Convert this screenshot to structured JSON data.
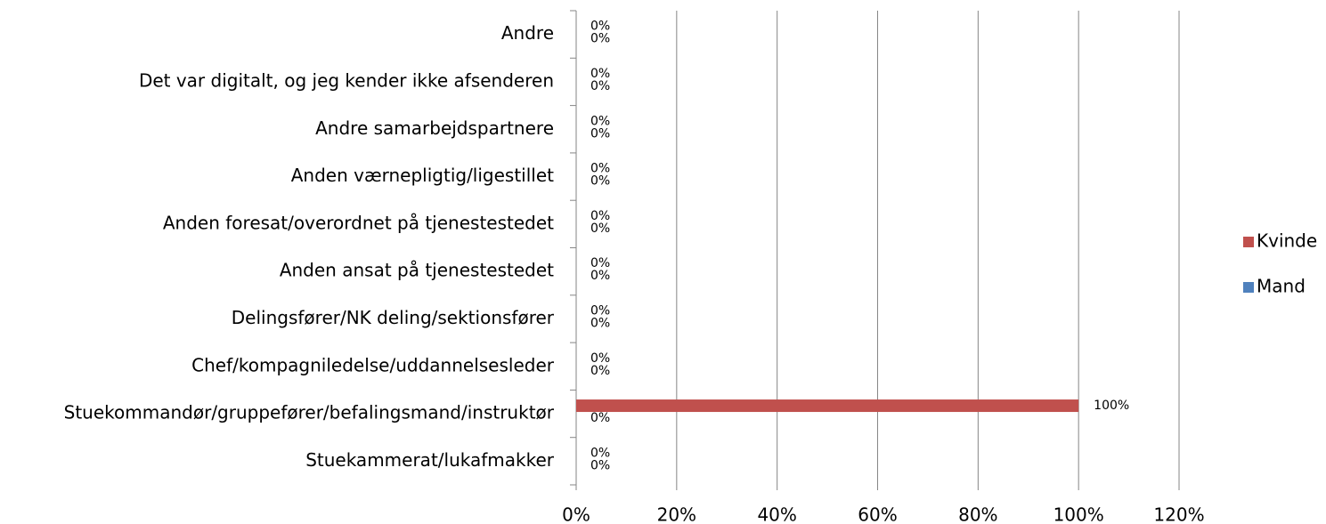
{
  "chart_data": {
    "type": "hbar",
    "categories": [
      "Andre",
      "Det var digitalt, og jeg kender ikke afsenderen",
      "Andre samarbejdspartnere",
      "Anden værnepligtig/ligestillet",
      "Anden foresat/overordnet på tjenestestedet",
      "Anden ansat på tjenestestedet",
      "Delingsfører/NK deling/sektionsfører",
      "Chef/kompagniledelse/uddannelsesleder",
      "Stuekommandør/gruppefører/befalingsmand/instruktør",
      "Stuekammerat/lukafmakker"
    ],
    "series": [
      {
        "name": "Kvinde",
        "color": "#c0504d",
        "values": [
          0,
          0,
          0,
          0,
          0,
          0,
          0,
          0,
          100,
          0
        ],
        "value_labels": [
          "0%",
          "0%",
          "0%",
          "0%",
          "0%",
          "0%",
          "0%",
          "0%",
          "100%",
          "0%"
        ]
      },
      {
        "name": "Mand",
        "color": "#4f81bd",
        "values": [
          0,
          0,
          0,
          0,
          0,
          0,
          0,
          0,
          0,
          0
        ],
        "value_labels": [
          "0%",
          "0%",
          "0%",
          "0%",
          "0%",
          "0%",
          "0%",
          "0%",
          "0%",
          "0%"
        ]
      }
    ],
    "xlim": [
      0,
      120
    ],
    "xticks": [
      {
        "value": 0,
        "label": "0%"
      },
      {
        "value": 20,
        "label": "20%"
      },
      {
        "value": 40,
        "label": "40%"
      },
      {
        "value": 60,
        "label": "60%"
      },
      {
        "value": 80,
        "label": "80%"
      },
      {
        "value": 100,
        "label": "100%"
      },
      {
        "value": 120,
        "label": "120%"
      }
    ],
    "grid": true,
    "legend": "right"
  }
}
